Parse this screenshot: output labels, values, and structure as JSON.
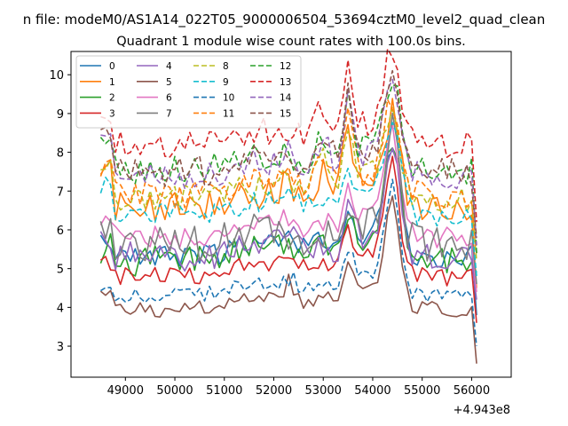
{
  "chart_data": {
    "type": "line",
    "suptitle": "n file: modeM0/AS1A14_022T05_9000006504_53694cztM0_level2_quad_clean",
    "title": "Quadrant 1 module wise count rates with 100.0s bins.",
    "xlabel": "",
    "ylabel": "",
    "x_offset_label": "+4.943e8",
    "xlim": [
      47900,
      56800
    ],
    "ylim": [
      2.2,
      10.6
    ],
    "x_ticks": [
      49000,
      50000,
      51000,
      52000,
      53000,
      54000,
      55000,
      56000
    ],
    "x_tick_labels": [
      "49000",
      "50000",
      "51000",
      "52000",
      "53000",
      "54000",
      "55000",
      "56000"
    ],
    "y_ticks": [
      3,
      4,
      5,
      6,
      7,
      8,
      9,
      10
    ],
    "y_tick_labels": [
      "3",
      "4",
      "5",
      "6",
      "7",
      "8",
      "9",
      "10"
    ],
    "x_start": 48500,
    "x_end": 56100,
    "x_step": 100,
    "grid": false,
    "legend_position": "top-left",
    "legend_columns": 4,
    "series": [
      {
        "name": "0",
        "color": "#1f77b4",
        "dash": "solid",
        "base": 5.3,
        "amp": 0.3,
        "tailEnd": 3.8
      },
      {
        "name": "1",
        "color": "#ff7f0e",
        "dash": "solid",
        "base": 6.6,
        "amp": 0.4,
        "tailEnd": 4.5
      },
      {
        "name": "2",
        "color": "#2ca02c",
        "dash": "solid",
        "base": 5.2,
        "amp": 0.4,
        "tailEnd": 4.9
      },
      {
        "name": "3",
        "color": "#d62728",
        "dash": "solid",
        "base": 4.8,
        "amp": 0.25,
        "tailEnd": 3.6
      },
      {
        "name": "4",
        "color": "#9467bd",
        "dash": "solid",
        "base": 5.3,
        "amp": 0.4,
        "tailEnd": 4.2
      },
      {
        "name": "5",
        "color": "#8c564b",
        "dash": "solid",
        "base": 3.95,
        "amp": 0.2,
        "tailEnd": 2.55
      },
      {
        "name": "6",
        "color": "#e377c2",
        "dash": "solid",
        "base": 5.8,
        "amp": 0.3,
        "tailEnd": 4.4
      },
      {
        "name": "7",
        "color": "#7f7f7f",
        "dash": "solid",
        "base": 5.6,
        "amp": 0.5,
        "tailEnd": 4.6
      },
      {
        "name": "8",
        "color": "#bcbd22",
        "dash": "dashed",
        "base": 6.8,
        "amp": 0.35,
        "tailEnd": 5.2
      },
      {
        "name": "9",
        "color": "#17becf",
        "dash": "dashed",
        "base": 6.4,
        "amp": 0.3,
        "tailEnd": 4.8
      },
      {
        "name": "10",
        "color": "#1f77b4",
        "dash": "dashed",
        "base": 4.3,
        "amp": 0.2,
        "tailEnd": 3.0
      },
      {
        "name": "11",
        "color": "#ff7f0e",
        "dash": "dashed",
        "base": 6.9,
        "amp": 0.35,
        "tailEnd": 5.4
      },
      {
        "name": "12",
        "color": "#2ca02c",
        "dash": "dashed",
        "base": 7.5,
        "amp": 0.4,
        "tailEnd": 5.4
      },
      {
        "name": "13",
        "color": "#d62728",
        "dash": "dashed",
        "base": 8.2,
        "amp": 0.35,
        "tailEnd": 6.2
      },
      {
        "name": "14",
        "color": "#9467bd",
        "dash": "dashed",
        "base": 7.4,
        "amp": 0.35,
        "tailEnd": 5.6
      },
      {
        "name": "15",
        "color": "#8c564b",
        "dash": "dashed",
        "base": 7.5,
        "amp": 0.4,
        "tailEnd": 5.8
      }
    ]
  }
}
